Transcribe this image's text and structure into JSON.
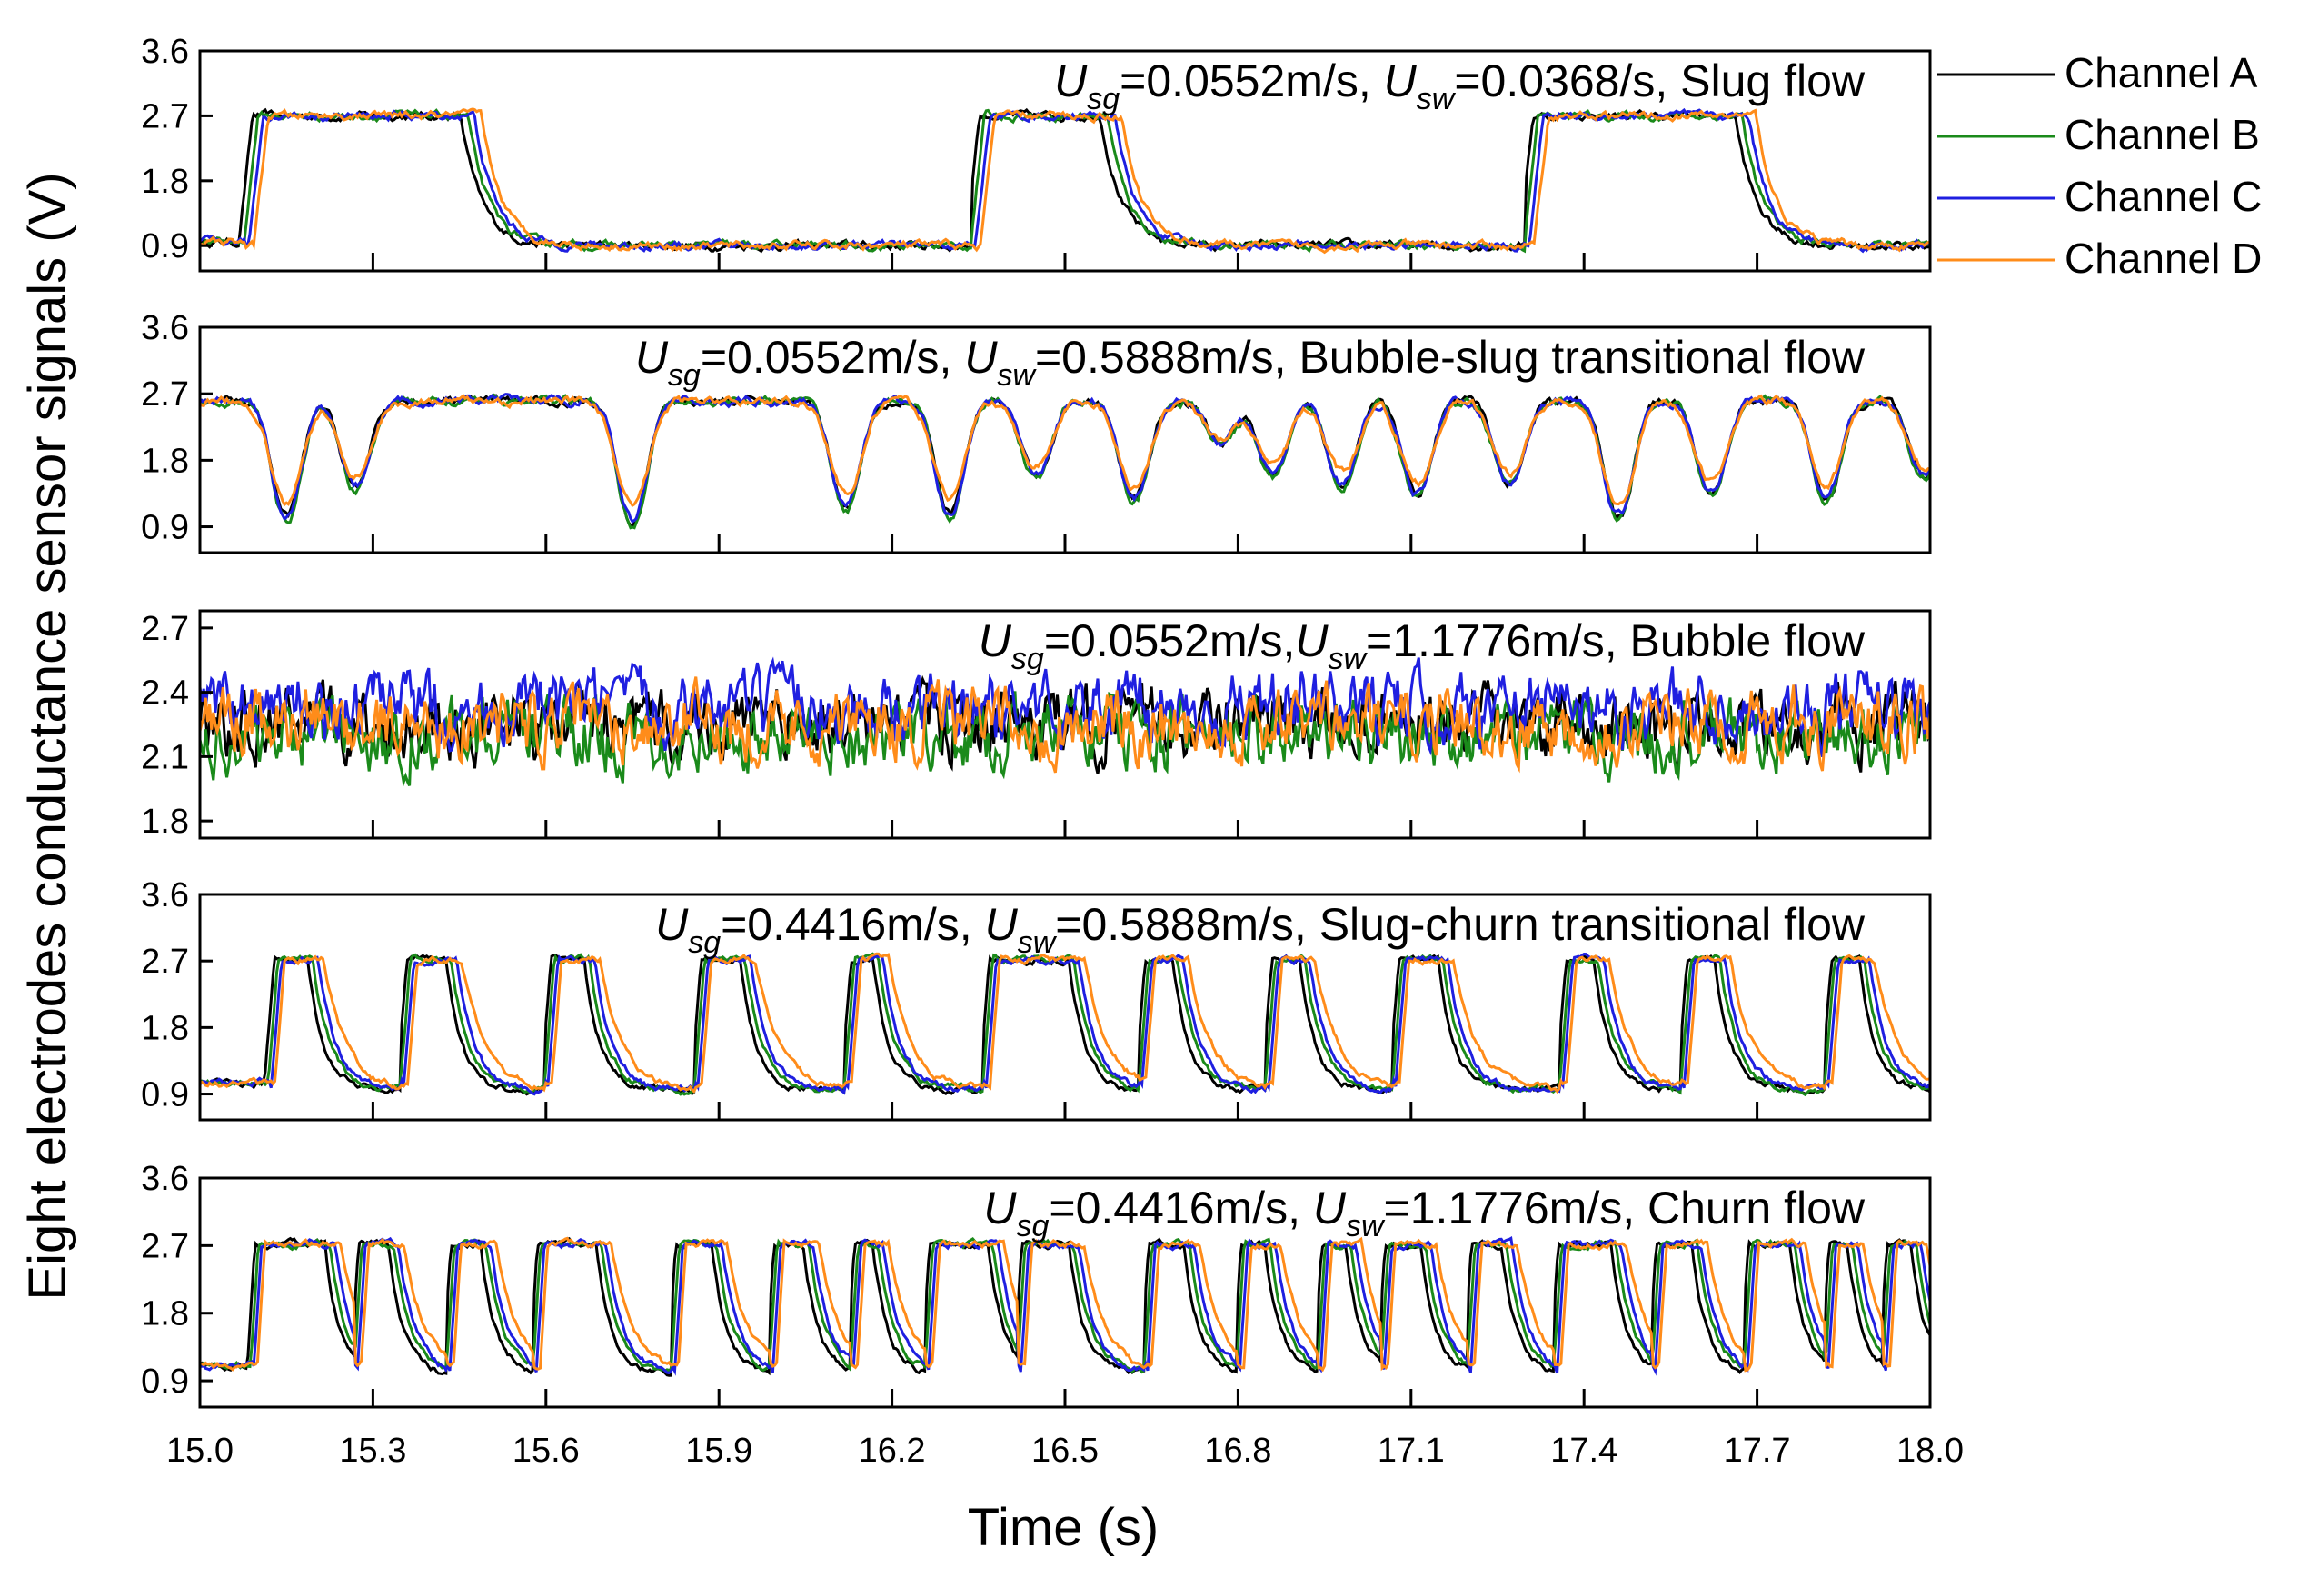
{
  "chart_data": {
    "type": "line",
    "figure": {
      "ylabel": "Eight electrodes conductance  sensor  signals (V)",
      "xlabel": "Time (s)",
      "xlim": [
        15.0,
        18.0
      ],
      "x_ticks": [
        15.0,
        15.3,
        15.6,
        15.9,
        16.2,
        16.5,
        16.8,
        17.1,
        17.4,
        17.7,
        18.0
      ],
      "x_tick_labels": [
        "15.0",
        "15.3",
        "15.6",
        "15.9",
        "16.2",
        "16.5",
        "16.8",
        "17.1",
        "17.4",
        "17.7",
        "18.0"
      ]
    },
    "legend": {
      "placement": "right of top panel",
      "entries": [
        {
          "name": "Channel A",
          "color": "#000000"
        },
        {
          "name": "Channel B",
          "color": "#1a8a1a"
        },
        {
          "name": "Channel C",
          "color": "#1f1fe0"
        },
        {
          "name": "Channel D",
          "color": "#ff8c1a"
        }
      ]
    },
    "panels": [
      {
        "flow_regime": "Slug flow",
        "annotation": {
          "usg_var": "U",
          "usg_sub": "sg",
          "usg_value": "=0.0552m/s, ",
          "usw_var": "U",
          "usw_sub": "sw",
          "usw_value": "=0.0368/s, Slug flow"
        },
        "ylim": [
          0.55,
          3.6
        ],
        "y_ticks": [
          0.9,
          1.8,
          2.7,
          3.6
        ],
        "y_tick_labels": [
          "0.9",
          "1.8",
          "2.7",
          "3.6"
        ],
        "signal": {
          "style": "square",
          "high": 2.7,
          "low": 0.9,
          "noise": 0.06,
          "rises": [
            15.08,
            16.34,
            17.3
          ],
          "falls": [
            15.47,
            16.58,
            17.68
          ],
          "ramp": 0.025,
          "fall_tau": 0.035,
          "noise_freq_high": 0.5,
          "noise_freq_low": 0.3
        }
      },
      {
        "flow_regime": "Bubble-slug transitional flow",
        "annotation": {
          "usg_var": "U",
          "usg_sub": "sg",
          "usg_value": "=0.0552m/s, ",
          "usw_var": "U",
          "usw_sub": "sw",
          "usw_value": "=0.5888m/s, Bubble-slug transitional flow"
        },
        "ylim": [
          0.55,
          3.6
        ],
        "y_ticks": [
          0.9,
          1.8,
          2.7,
          3.6
        ],
        "y_tick_labels": [
          "0.9",
          "1.8",
          "2.7",
          "3.6"
        ],
        "signal": {
          "style": "dips",
          "high": 2.6,
          "noise": 0.06,
          "dips": [
            [
              15.15,
              1.05
            ],
            [
              15.27,
              1.45
            ],
            [
              15.75,
              1.0
            ],
            [
              16.12,
              1.2
            ],
            [
              16.3,
              1.1
            ],
            [
              16.45,
              1.6
            ],
            [
              16.62,
              1.3
            ],
            [
              16.77,
              2.05
            ],
            [
              16.86,
              1.6
            ],
            [
              16.98,
              1.5
            ],
            [
              17.11,
              1.35
            ],
            [
              17.27,
              1.5
            ],
            [
              17.46,
              1.05
            ],
            [
              17.62,
              1.35
            ],
            [
              17.82,
              1.3
            ],
            [
              17.99,
              1.6
            ]
          ],
          "dip_width": 0.035
        }
      },
      {
        "flow_regime": "Bubble flow",
        "annotation": {
          "usg_var": "U",
          "usg_sub": "sg",
          "usg_value": "=0.0552m/s,",
          "usw_var": "U",
          "usw_sub": "sw",
          "usw_value": "=1.1776m/s,  Bubble flow"
        },
        "ylim": [
          1.72,
          2.78
        ],
        "y_ticks": [
          1.8,
          2.1,
          2.4,
          2.7
        ],
        "y_tick_labels": [
          "1.8",
          "2.1",
          "2.4",
          "2.7"
        ],
        "signal": {
          "style": "noise",
          "means": [
            2.25,
            2.2,
            2.33,
            2.25
          ],
          "noise": 0.08
        }
      },
      {
        "flow_regime": "Slug-churn transitional flow",
        "annotation": {
          "usg_var": "U",
          "usg_sub": "sg",
          "usg_value": "=0.4416m/s, ",
          "usw_var": "U",
          "usw_sub": "sw",
          "usw_value": "=0.5888m/s, Slug-churn transitional flow"
        },
        "ylim": [
          0.55,
          3.6
        ],
        "y_ticks": [
          0.9,
          1.8,
          2.7,
          3.6
        ],
        "y_tick_labels": [
          "0.9",
          "1.8",
          "2.7",
          "3.6"
        ],
        "signal": {
          "style": "pulses",
          "high": 2.72,
          "low": 0.95,
          "noise": 0.05,
          "pulses": [
            [
              15.12,
              15.2
            ],
            [
              15.35,
              15.44
            ],
            [
              15.6,
              15.68
            ],
            [
              15.86,
              15.95
            ],
            [
              16.12,
              16.18
            ],
            [
              16.36,
              16.52
            ],
            [
              16.63,
              16.7
            ],
            [
              16.85,
              16.92
            ],
            [
              17.07,
              17.16
            ],
            [
              17.36,
              17.43
            ],
            [
              17.57,
              17.64
            ],
            [
              17.82,
              17.89
            ]
          ],
          "ramp": 0.018,
          "fall_tau": 0.03
        }
      },
      {
        "flow_regime": "Churn flow",
        "annotation": {
          "usg_var": "U",
          "usg_sub": "sg",
          "usg_value": "=0.4416m/s, ",
          "usw_var": "U",
          "usw_sub": "sw",
          "usw_value": "=1.1776m/s, Churn flow"
        },
        "ylim": [
          0.55,
          3.6
        ],
        "y_ticks": [
          0.9,
          1.8,
          2.7,
          3.6
        ],
        "y_tick_labels": [
          "0.9",
          "1.8",
          "2.7",
          "3.6"
        ],
        "signal": {
          "style": "pulses",
          "high": 2.72,
          "low": 1.0,
          "noise": 0.05,
          "pulses": [
            [
              15.09,
              15.23
            ],
            [
              15.27,
              15.34
            ],
            [
              15.43,
              15.5
            ],
            [
              15.58,
              15.7
            ],
            [
              15.82,
              15.9
            ],
            [
              15.99,
              16.06
            ],
            [
              16.13,
              16.18
            ],
            [
              16.26,
              16.38
            ],
            [
              16.42,
              16.52
            ],
            [
              16.64,
              16.72
            ],
            [
              16.8,
              16.86
            ],
            [
              16.94,
              17.0
            ],
            [
              17.05,
              17.13
            ],
            [
              17.2,
              17.27
            ],
            [
              17.35,
              17.46
            ],
            [
              17.52,
              17.6
            ],
            [
              17.68,
              17.77
            ],
            [
              17.82,
              17.87
            ],
            [
              17.92,
              17.98
            ]
          ],
          "ramp": 0.014,
          "fall_tau": 0.028
        }
      }
    ]
  }
}
